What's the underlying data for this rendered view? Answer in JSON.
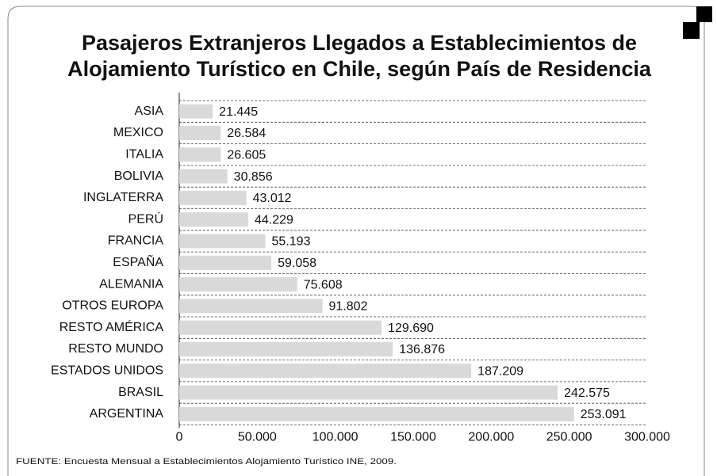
{
  "chart_data": {
    "type": "bar",
    "orientation": "horizontal",
    "title": [
      "Pasajeros Extranjeros Llegados a Establecimientos de",
      "Alojamiento Turístico en Chile, según País de Residencia"
    ],
    "categories": [
      "ASIA",
      "MEXICO",
      "ITALIA",
      "BOLIVIA",
      "INGLATERRA",
      "PERÚ",
      "FRANCIA",
      "ESPAÑA",
      "ALEMANIA",
      "OTROS EUROPA",
      "RESTO AMÉRICA",
      "RESTO MUNDO",
      "ESTADOS UNIDOS",
      "BRASIL",
      "ARGENTINA"
    ],
    "values": [
      21445,
      26584,
      26605,
      30856,
      43012,
      44229,
      55193,
      59058,
      75608,
      91802,
      129690,
      136876,
      187209,
      242575,
      253091
    ],
    "value_labels": [
      "21.445",
      "26.584",
      "26.605",
      "30.856",
      "43.012",
      "44.229",
      "55.193",
      "59.058",
      "75.608",
      "91.802",
      "129.690",
      "136.876",
      "187.209",
      "242.575",
      "253.091"
    ],
    "color": "#d9d9d9",
    "xlim": [
      0,
      300000
    ],
    "xticks": [
      0,
      {
        "value": 50000,
        "label": "50.000"
      },
      {
        "value": 100000,
        "label": "100.000"
      },
      {
        "value": 150000,
        "label": "150.000"
      },
      {
        "value": 200000,
        "label": "200.000"
      },
      {
        "value": 250000,
        "label": "250.000"
      },
      {
        "value": 300000,
        "label": "300.000"
      }
    ],
    "source": "FUENTE: Encuesta Mensual a Establecimientos Alojamiento Turístico INE, 2009."
  }
}
